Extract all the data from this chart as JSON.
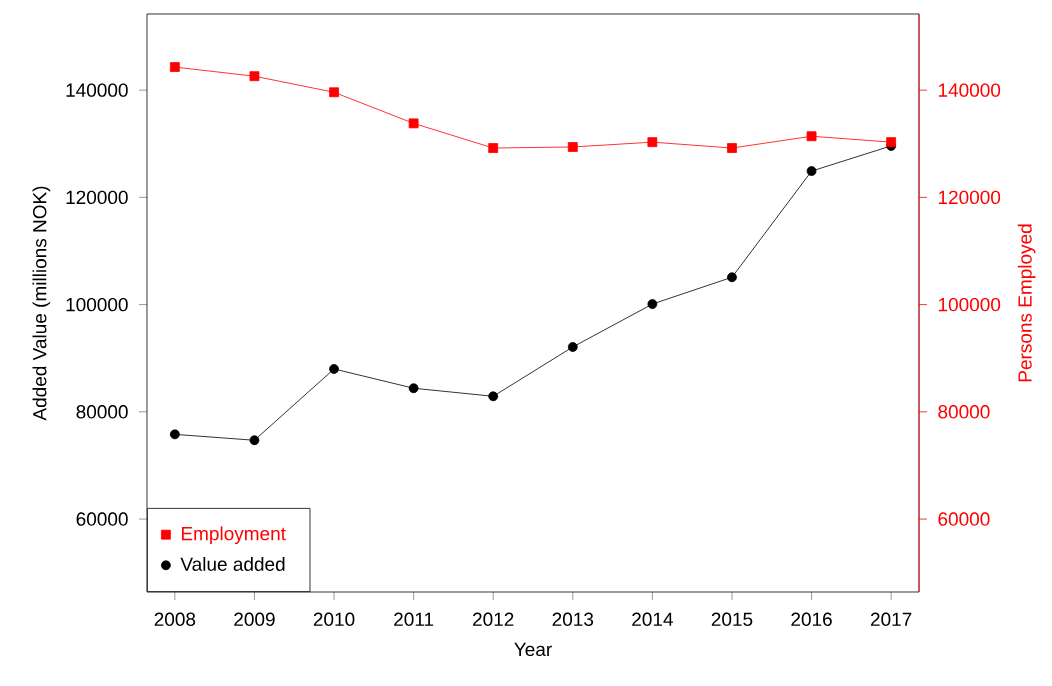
{
  "chart_data": {
    "type": "line",
    "xlabel": "Year",
    "ylabel": "Added Value (millions NOK)",
    "y2label": "Persons Employed",
    "x": [
      2008,
      2009,
      2010,
      2011,
      2012,
      2013,
      2014,
      2015,
      2016,
      2017
    ],
    "series": [
      {
        "name": "Employment",
        "color": "#ff0000",
        "axis": "y2",
        "marker": "square",
        "values": [
          144300,
          142600,
          139600,
          133800,
          129200,
          129400,
          130300,
          129200,
          131400,
          130300
        ]
      },
      {
        "name": "Value added",
        "color": "#000000",
        "marker": "circle",
        "values": [
          75800,
          74700,
          88000,
          84400,
          82900,
          92100,
          100100,
          105100,
          124900,
          129600
        ]
      }
    ],
    "xlim": [
      2007.65,
      2017.35
    ],
    "xticks": [
      2008,
      2009,
      2010,
      2011,
      2012,
      2013,
      2014,
      2015,
      2016,
      2017
    ],
    "ylim": [
      46400,
      154200
    ],
    "yticks": [
      60000,
      80000,
      100000,
      120000,
      140000
    ],
    "y2lim": [
      46400,
      154200
    ],
    "y2ticks": [
      60000,
      80000,
      100000,
      120000,
      140000
    ],
    "grid": false,
    "legend": "bottom left",
    "line_style": "solid"
  }
}
